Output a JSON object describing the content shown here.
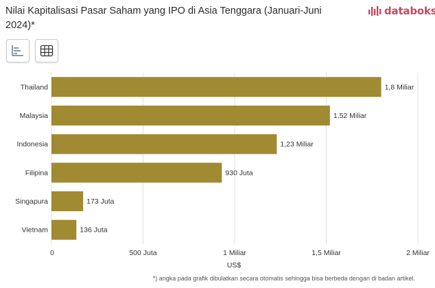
{
  "header": {
    "title": "Nilai Kapitalisasi Pasar Saham yang IPO di Asia Tenggara (Januari-Juni 2024)*",
    "logo_text": "databoks"
  },
  "toolbar": {
    "chart_view_icon": "bar-chart-icon",
    "table_view_icon": "table-grid-icon"
  },
  "colors": {
    "bar": "#a08a32",
    "grid": "#e0e0e0",
    "brand": "#c74a5c"
  },
  "chart_data": {
    "type": "bar",
    "orientation": "horizontal",
    "categories": [
      "Thailand",
      "Malaysia",
      "Indonesia",
      "Filipina",
      "Singapura",
      "Vietnam"
    ],
    "values": [
      1800000000,
      1520000000,
      1230000000,
      930000000,
      173000000,
      136000000
    ],
    "data_labels": [
      "1,8 Miliar",
      "1,52 Miliar",
      "1,23 Miliar",
      "930 Juta",
      "173 Juta",
      "136 Juta"
    ],
    "xlim": [
      0,
      2000000000
    ],
    "x_ticks": [
      0,
      500000000,
      1000000000,
      1500000000,
      2000000000
    ],
    "x_tick_labels": [
      "0",
      "500 Juta",
      "1 Miliar",
      "1,5 Miliar",
      "2 Miliar"
    ],
    "xlabel": "US$",
    "grid": true
  },
  "footnote": "*) angka pada grafik dibulatkan secara otomatis sehingga bisa berbeda dengan di badan artikel."
}
